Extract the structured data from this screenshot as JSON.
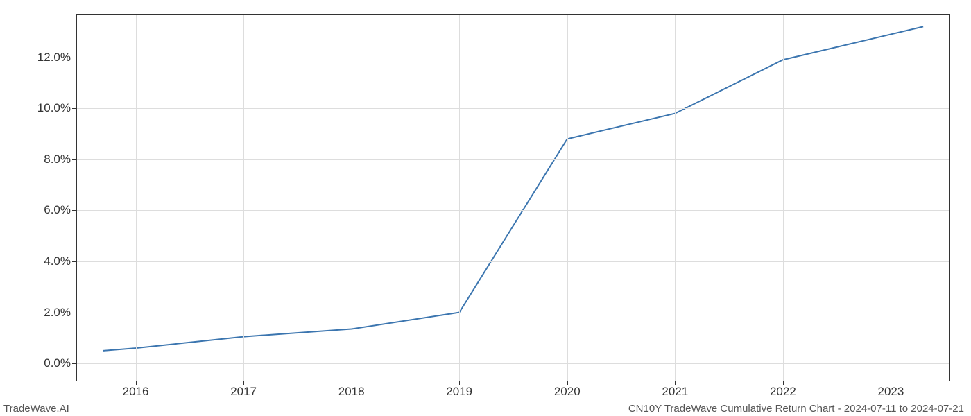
{
  "chart": {
    "type": "line",
    "x_values": [
      2015.7,
      2016,
      2017,
      2018,
      2019,
      2020,
      2021,
      2022,
      2023,
      2023.3
    ],
    "y_values": [
      0.5,
      0.6,
      1.05,
      1.35,
      2.0,
      8.8,
      9.8,
      11.9,
      12.9,
      13.2
    ],
    "line_color": "#3b75af",
    "line_width": 2,
    "background_color": "#ffffff",
    "grid_color": "#dddddd",
    "border_color": "#333333",
    "xlim": [
      2015.45,
      2023.55
    ],
    "ylim": [
      -0.7,
      13.7
    ],
    "x_ticks": [
      2016,
      2017,
      2018,
      2019,
      2020,
      2021,
      2022,
      2023
    ],
    "x_tick_labels": [
      "2016",
      "2017",
      "2018",
      "2019",
      "2020",
      "2021",
      "2022",
      "2023"
    ],
    "y_ticks": [
      0,
      2,
      4,
      6,
      8,
      10,
      12
    ],
    "y_tick_labels": [
      "0.0%",
      "2.0%",
      "4.0%",
      "6.0%",
      "8.0%",
      "10.0%",
      "12.0%"
    ],
    "tick_fontsize": 17,
    "footer_fontsize": 15
  },
  "footer": {
    "left": "TradeWave.AI",
    "right": "CN10Y TradeWave Cumulative Return Chart - 2024-07-11 to 2024-07-21"
  }
}
